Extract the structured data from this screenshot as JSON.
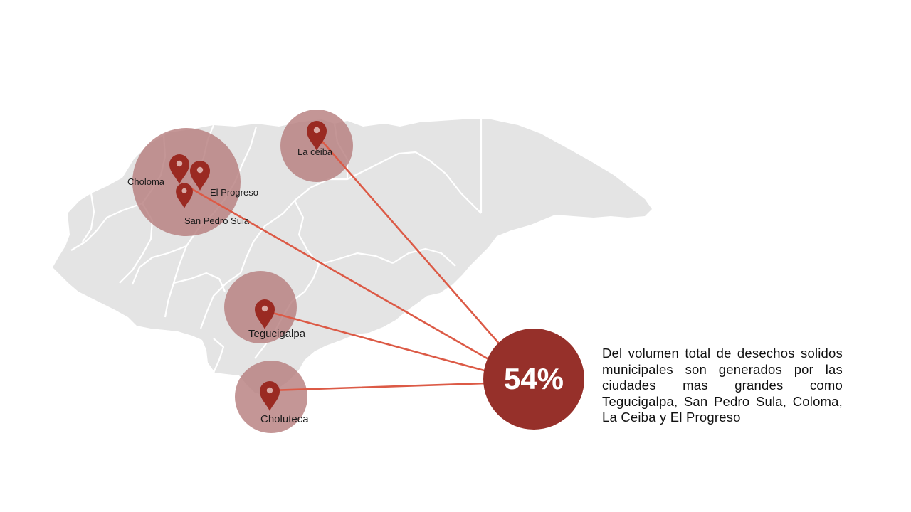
{
  "colors": {
    "map_fill": "#e4e4e4",
    "map_borders": "#ffffff",
    "city_circle": "#b57c7c",
    "pin": "#9a2a22",
    "connector": "#dc5a46",
    "stat_circle": "#96302a",
    "stat_text": "#ffffff"
  },
  "icons": {
    "pin": "map-pin-icon"
  },
  "cities": {
    "choloma": "Choloma",
    "el_progreso": "El Progreso",
    "san_pedro_sula": "San Pedro Sula",
    "la_ceiba": "La ceiba",
    "tegucigalpa": "Tegucigalpa",
    "choluteca": "Choluteca"
  },
  "stat": {
    "value": "54%",
    "description": "Del volumen total de desechos solidos municipales son generados por las ciudades mas grandes como Tegucigalpa, San Pedro Sula, Coloma, La Ceiba y El Progreso"
  }
}
